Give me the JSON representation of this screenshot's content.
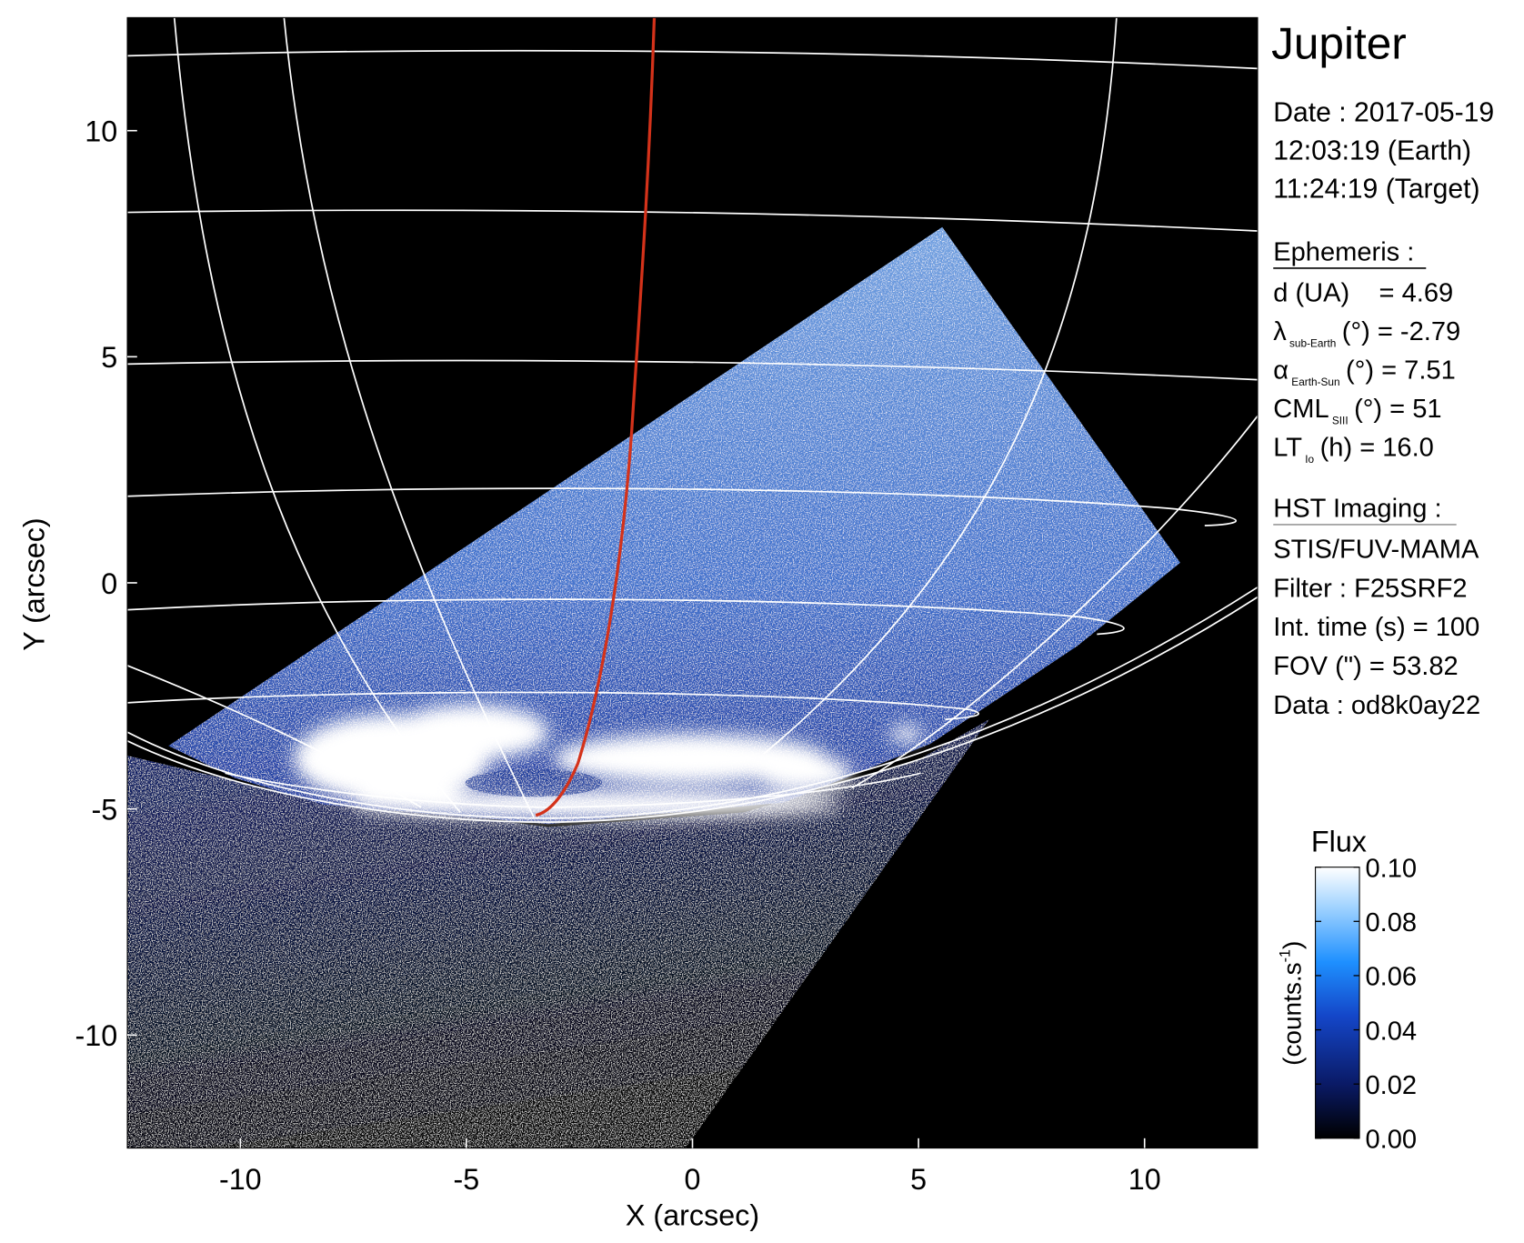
{
  "chart_data": {
    "type": "image",
    "xlabel": "X (arcsec)",
    "ylabel": "Y (arcsec)",
    "xlim": [
      -12.5,
      12.5
    ],
    "ylim": [
      -12.5,
      12.5
    ],
    "xticks": [
      -10,
      -5,
      0,
      5,
      10
    ],
    "yticks": [
      -10,
      -5,
      0,
      5,
      10
    ],
    "info": {
      "target": "Jupiter",
      "date": [
        "Date : 2017-05-19",
        "12:03:19 (Earth)",
        "11:24:19 (Target)"
      ],
      "ephemeris_title": "Ephemeris :",
      "ephemeris": [
        {
          "text": "d (UA)    = 4.69"
        },
        {
          "symbol": "λ",
          "sub": "sub-Earth",
          "text": "(°) = -2.79"
        },
        {
          "symbol": "α",
          "sub": "Earth-Sun",
          "text": "(°) = 7.51"
        },
        {
          "symbol": "CML",
          "sub": "SIII",
          "text": "(°) = 51"
        },
        {
          "symbol": "LT",
          "sub": "Io",
          "text": "(h) = 16.0"
        }
      ],
      "imaging_title": "HST Imaging :",
      "imaging": [
        "STIS/FUV-MAMA",
        "Filter : F25SRF2",
        "Int. time (s) = 100",
        "FOV (\") = 53.82",
        "Data : od8k0ay22"
      ]
    },
    "colorbar": {
      "title": "Flux",
      "label": {
        "text": "(counts.s",
        "sup": "-1",
        "end": ")"
      },
      "lim": [
        0,
        0.1
      ],
      "ticks": [
        {
          "value": 0,
          "label": "0.00"
        },
        {
          "value": 0.02,
          "label": "0.02"
        },
        {
          "value": 0.04,
          "label": "0.04"
        },
        {
          "value": 0.06,
          "label": "0.06"
        },
        {
          "value": 0.08,
          "label": "0.08"
        },
        {
          "value": 0.1,
          "label": "0.10"
        }
      ]
    }
  }
}
